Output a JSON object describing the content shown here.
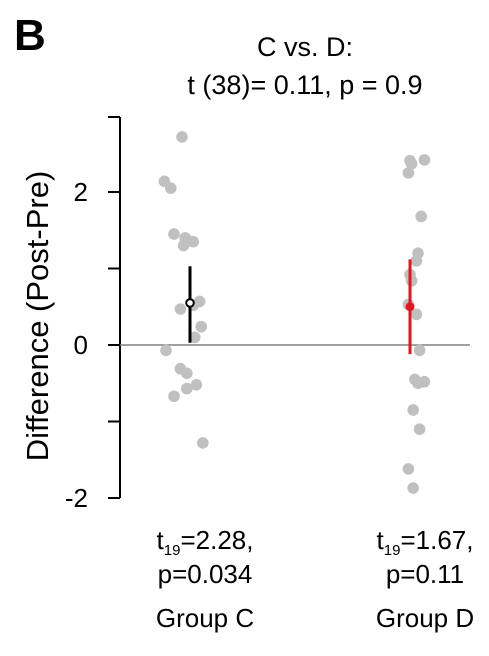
{
  "panel_label": "B",
  "chart_data": {
    "type": "scatter",
    "title": "C vs. D:",
    "subtitle": "t (38)= 0.11, p = 0.9",
    "ylabel": "Difference (Post-Pre)",
    "ylim": [
      -2,
      3
    ],
    "yticks": [
      -2,
      0,
      2
    ],
    "ytick_labels": [
      "-2",
      "0",
      "2"
    ],
    "reference_line_y": 0,
    "groups": [
      {
        "name": "Group C",
        "stat_t": "t",
        "stat_df": "19",
        "stat_line1_tail": "=2.28,",
        "stat_line2": "p=0.034",
        "mean": 0.55,
        "ci": [
          0.03,
          1.03
        ],
        "mean_color": "#000000",
        "mean_style": "hollow",
        "points": [
          {
            "x": 0.15,
            "y": 2.72
          },
          {
            "x": 0.04,
            "y": 2.14
          },
          {
            "x": 0.08,
            "y": 2.05
          },
          {
            "x": 0.1,
            "y": 1.45
          },
          {
            "x": 0.17,
            "y": 1.4
          },
          {
            "x": 0.22,
            "y": 1.35
          },
          {
            "x": 0.16,
            "y": 1.3
          },
          {
            "x": 0.26,
            "y": 0.57
          },
          {
            "x": 0.22,
            "y": 0.52
          },
          {
            "x": 0.14,
            "y": 0.47
          },
          {
            "x": 0.27,
            "y": 0.24
          },
          {
            "x": 0.23,
            "y": 0.1
          },
          {
            "x": 0.05,
            "y": -0.07
          },
          {
            "x": 0.14,
            "y": -0.31
          },
          {
            "x": 0.18,
            "y": -0.37
          },
          {
            "x": 0.24,
            "y": -0.52
          },
          {
            "x": 0.18,
            "y": -0.57
          },
          {
            "x": 0.1,
            "y": -0.67
          },
          {
            "x": 0.28,
            "y": -1.28
          }
        ]
      },
      {
        "name": "Group D",
        "stat_t": "t",
        "stat_df": "19",
        "stat_line1_tail": "=1.67,",
        "stat_line2": "p=0.11",
        "mean": 0.5,
        "ci": [
          -0.12,
          1.12
        ],
        "mean_color": "#e3161d",
        "mean_style": "filled",
        "points": [
          {
            "x": 0.2,
            "y": 2.41
          },
          {
            "x": 0.29,
            "y": 2.42
          },
          {
            "x": 0.21,
            "y": 2.37
          },
          {
            "x": 0.19,
            "y": 2.25
          },
          {
            "x": 0.27,
            "y": 1.68
          },
          {
            "x": 0.25,
            "y": 1.2
          },
          {
            "x": 0.24,
            "y": 1.1
          },
          {
            "x": 0.2,
            "y": 0.92
          },
          {
            "x": 0.21,
            "y": 0.84
          },
          {
            "x": 0.19,
            "y": 0.53
          },
          {
            "x": 0.24,
            "y": 0.4
          },
          {
            "x": 0.26,
            "y": -0.07
          },
          {
            "x": 0.23,
            "y": -0.45
          },
          {
            "x": 0.29,
            "y": -0.48
          },
          {
            "x": 0.25,
            "y": -0.5
          },
          {
            "x": 0.22,
            "y": -0.85
          },
          {
            "x": 0.26,
            "y": -1.1
          },
          {
            "x": 0.19,
            "y": -1.62
          },
          {
            "x": 0.22,
            "y": -1.87
          }
        ]
      }
    ],
    "colors": {
      "points": "#c0c0c0",
      "axis": "#000000",
      "reference_line": "#808080"
    }
  }
}
